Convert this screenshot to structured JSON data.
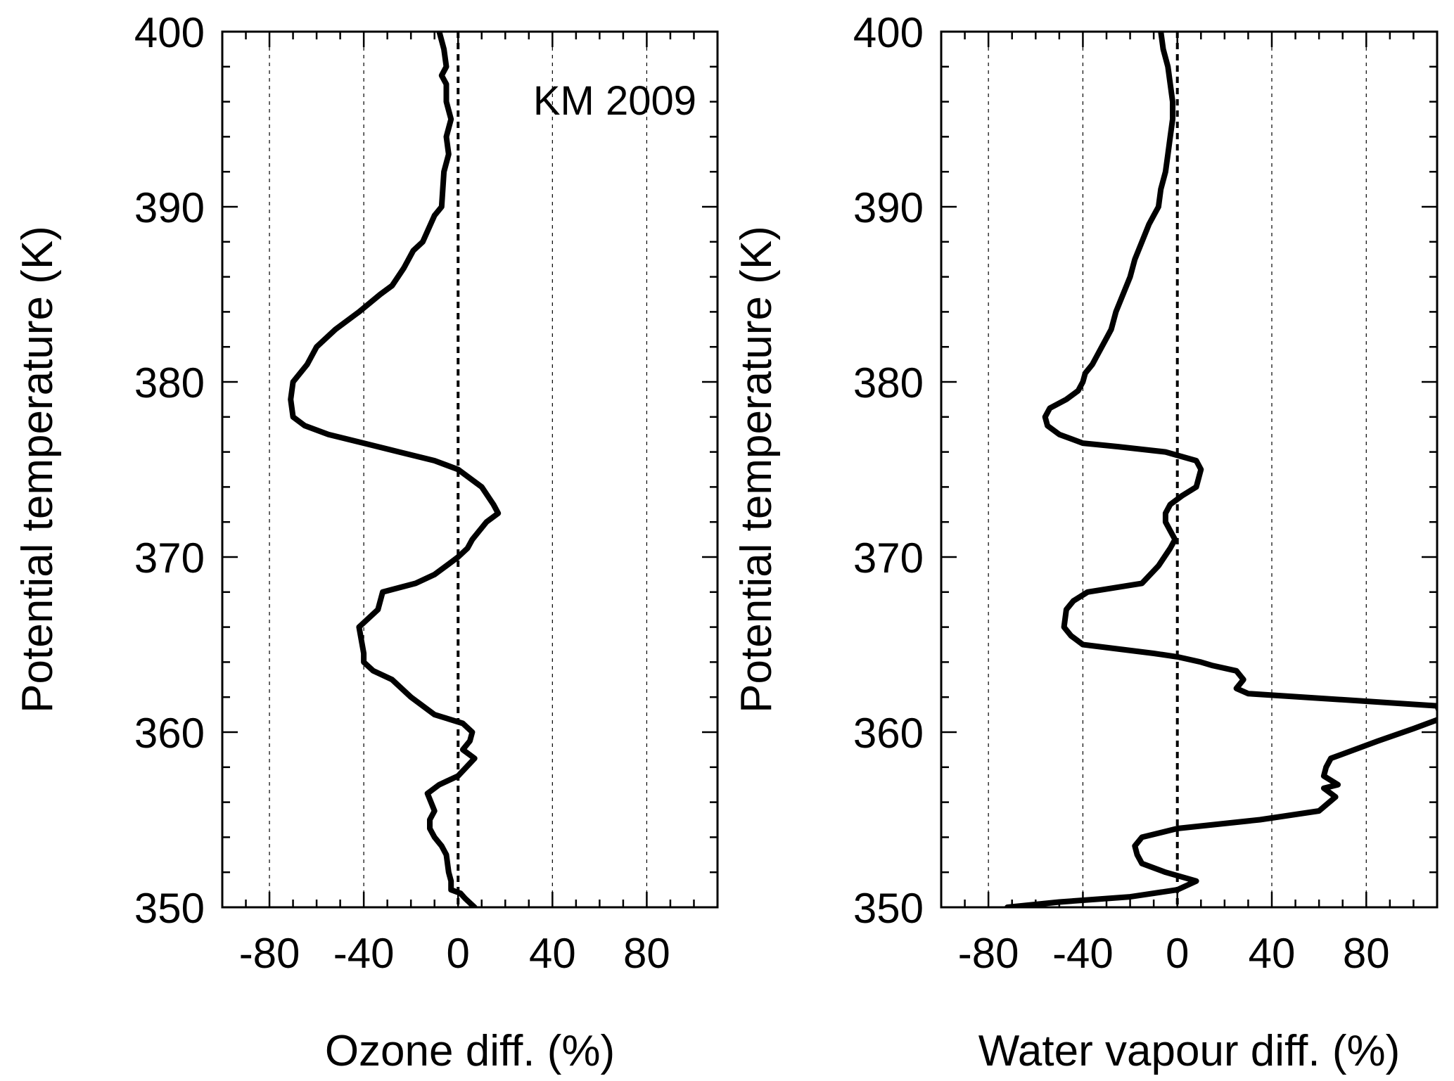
{
  "colors": {
    "line": "#000000",
    "background": "#ffffff",
    "grid": "#000000"
  },
  "chart_data": [
    {
      "type": "line",
      "xlabel": "Ozone diff. (%)",
      "ylabel": "Potential  temperature (K)",
      "annotation": "KM 2009",
      "xlim": [
        -100,
        110
      ],
      "ylim": [
        350,
        400
      ],
      "xticks": [
        -80,
        -40,
        0,
        40,
        80
      ],
      "xtick_labels": [
        "-80",
        "-40",
        "0",
        "40",
        "80"
      ],
      "yticks": [
        350,
        360,
        370,
        380,
        390,
        400
      ],
      "ytick_labels": [
        "350",
        "360",
        "370",
        "380",
        "390",
        "400"
      ],
      "grid": "vertical dashed at x ticks",
      "zero_line": "dashed",
      "series": [
        {
          "x": [
            -8,
            -6,
            -5,
            -7,
            -5,
            -5,
            -3,
            -5,
            -4,
            -6,
            -7,
            -10,
            -15,
            -19,
            -23,
            -28,
            -33,
            -42,
            -52,
            -60,
            -64,
            -70,
            -71,
            -70,
            -65,
            -55,
            -40,
            -25,
            -10,
            0,
            10,
            15,
            17,
            12,
            6,
            4,
            0,
            -5,
            -10,
            -18,
            -32,
            -34,
            -42,
            -40,
            -40,
            -36,
            -28,
            -20,
            -10,
            2,
            6,
            5,
            2,
            7,
            0,
            -8,
            -13,
            -10,
            -12,
            -12,
            -10,
            -7,
            -5,
            -4,
            -3,
            -3,
            1,
            3,
            7
          ],
          "y": [
            400,
            399,
            398,
            397.5,
            397,
            396,
            395,
            394,
            393,
            392,
            390,
            389.5,
            388,
            387.5,
            386.5,
            385.5,
            385,
            384,
            383,
            382,
            381,
            380,
            379,
            378,
            377.5,
            377,
            376.5,
            376,
            375.5,
            375,
            374,
            373,
            372.5,
            372,
            371,
            370.5,
            370,
            369.5,
            369,
            368.5,
            368,
            367,
            366,
            364.5,
            364,
            363.5,
            363,
            362,
            361,
            360.5,
            360,
            359.5,
            359,
            358.5,
            357.5,
            357,
            356.5,
            355.5,
            355,
            354.5,
            354,
            353.5,
            353,
            352,
            351.5,
            351,
            350.8,
            350.5,
            350
          ]
        }
      ]
    },
    {
      "type": "line",
      "xlabel": "Water vapour diff. (%)",
      "ylabel": "Potential  temperature (K)",
      "xlim": [
        -100,
        110
      ],
      "ylim": [
        350,
        400
      ],
      "xticks": [
        -80,
        -40,
        0,
        40,
        80
      ],
      "xtick_labels": [
        "-80",
        "-40",
        "0",
        "40",
        "80"
      ],
      "yticks": [
        350,
        360,
        370,
        380,
        390,
        400
      ],
      "ytick_labels": [
        "350",
        "360",
        "370",
        "380",
        "390",
        "400"
      ],
      "grid": "vertical dashed at x ticks",
      "zero_line": "dashed",
      "series": [
        {
          "x": [
            -7,
            -6,
            -4,
            -2,
            -2,
            -3,
            -4,
            -5,
            -7,
            -8,
            -10,
            -12,
            -15,
            -18,
            -20,
            -23,
            -26,
            -28,
            -30,
            -32,
            -34,
            -36,
            -39,
            -40,
            -42,
            -47,
            -54,
            -56,
            -55,
            -50,
            -40,
            -25,
            -5,
            8,
            10,
            8,
            2,
            -3,
            -5,
            -5,
            -3,
            -1,
            -3,
            -8,
            -15,
            -38,
            -44,
            -47,
            -48,
            -45,
            -40,
            -28,
            -10,
            0,
            10,
            15,
            25,
            28,
            25,
            30,
            110,
            112,
            100,
            85,
            65,
            63,
            62,
            68,
            62,
            67,
            60,
            35,
            0,
            -15,
            -18,
            -17,
            -15,
            -5,
            8,
            0,
            -20,
            -50,
            -72
          ],
          "y": [
            400,
            399,
            398,
            396,
            395,
            394,
            393,
            392,
            391,
            390,
            389.5,
            389,
            388,
            387,
            386,
            385,
            384,
            383,
            382.5,
            382,
            381.5,
            381,
            380.5,
            380,
            379.5,
            379,
            378.5,
            378,
            377.5,
            377,
            376.5,
            376.3,
            376,
            375.5,
            375,
            374,
            373.5,
            373,
            372.5,
            372,
            371.5,
            371,
            370.5,
            369.5,
            368.5,
            368,
            367.5,
            367,
            366,
            365.5,
            365,
            364.8,
            364.5,
            364.3,
            364,
            363.8,
            363.5,
            363,
            362.5,
            362.2,
            361.5,
            360.8,
            360.2,
            359.5,
            358.5,
            358,
            357.5,
            357,
            356.8,
            356.3,
            355.5,
            355,
            354.5,
            354,
            353.5,
            353,
            352.5,
            352,
            351.5,
            351,
            350.6,
            350.3,
            350
          ]
        }
      ]
    }
  ]
}
